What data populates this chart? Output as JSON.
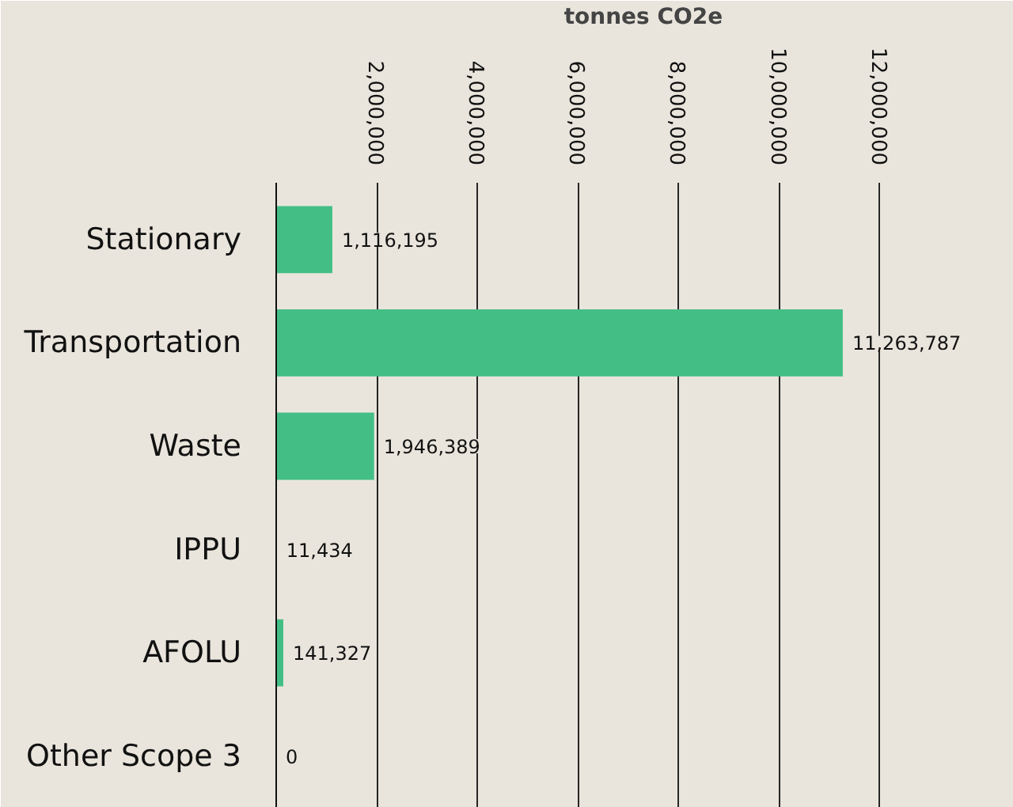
{
  "chart_data": {
    "type": "bar",
    "orientation": "horizontal",
    "xlabel": "tonnes CO2e",
    "categories": [
      "Stationary",
      "Transportation",
      "Waste",
      "IPPU",
      "AFOLU",
      "Other Scope 3"
    ],
    "values": [
      1116195,
      11263787,
      1946389,
      11434,
      141327,
      0
    ],
    "value_labels": [
      "1,116,195",
      "11,263,787",
      "1,946,389",
      "11,434",
      "141,327",
      "0"
    ],
    "color": "#43bf85",
    "xlim": [
      0,
      14600000
    ],
    "xticks": [
      {
        "value": 2000000,
        "label": "2,000,000"
      },
      {
        "value": 4000000,
        "label": "4,000,000"
      },
      {
        "value": 6000000,
        "label": "6,000,000"
      },
      {
        "value": 8000000,
        "label": "8,000,000"
      },
      {
        "value": 10000000,
        "label": "10,000,000"
      },
      {
        "value": 12000000,
        "label": "12,000,000"
      }
    ],
    "grid": "x"
  }
}
